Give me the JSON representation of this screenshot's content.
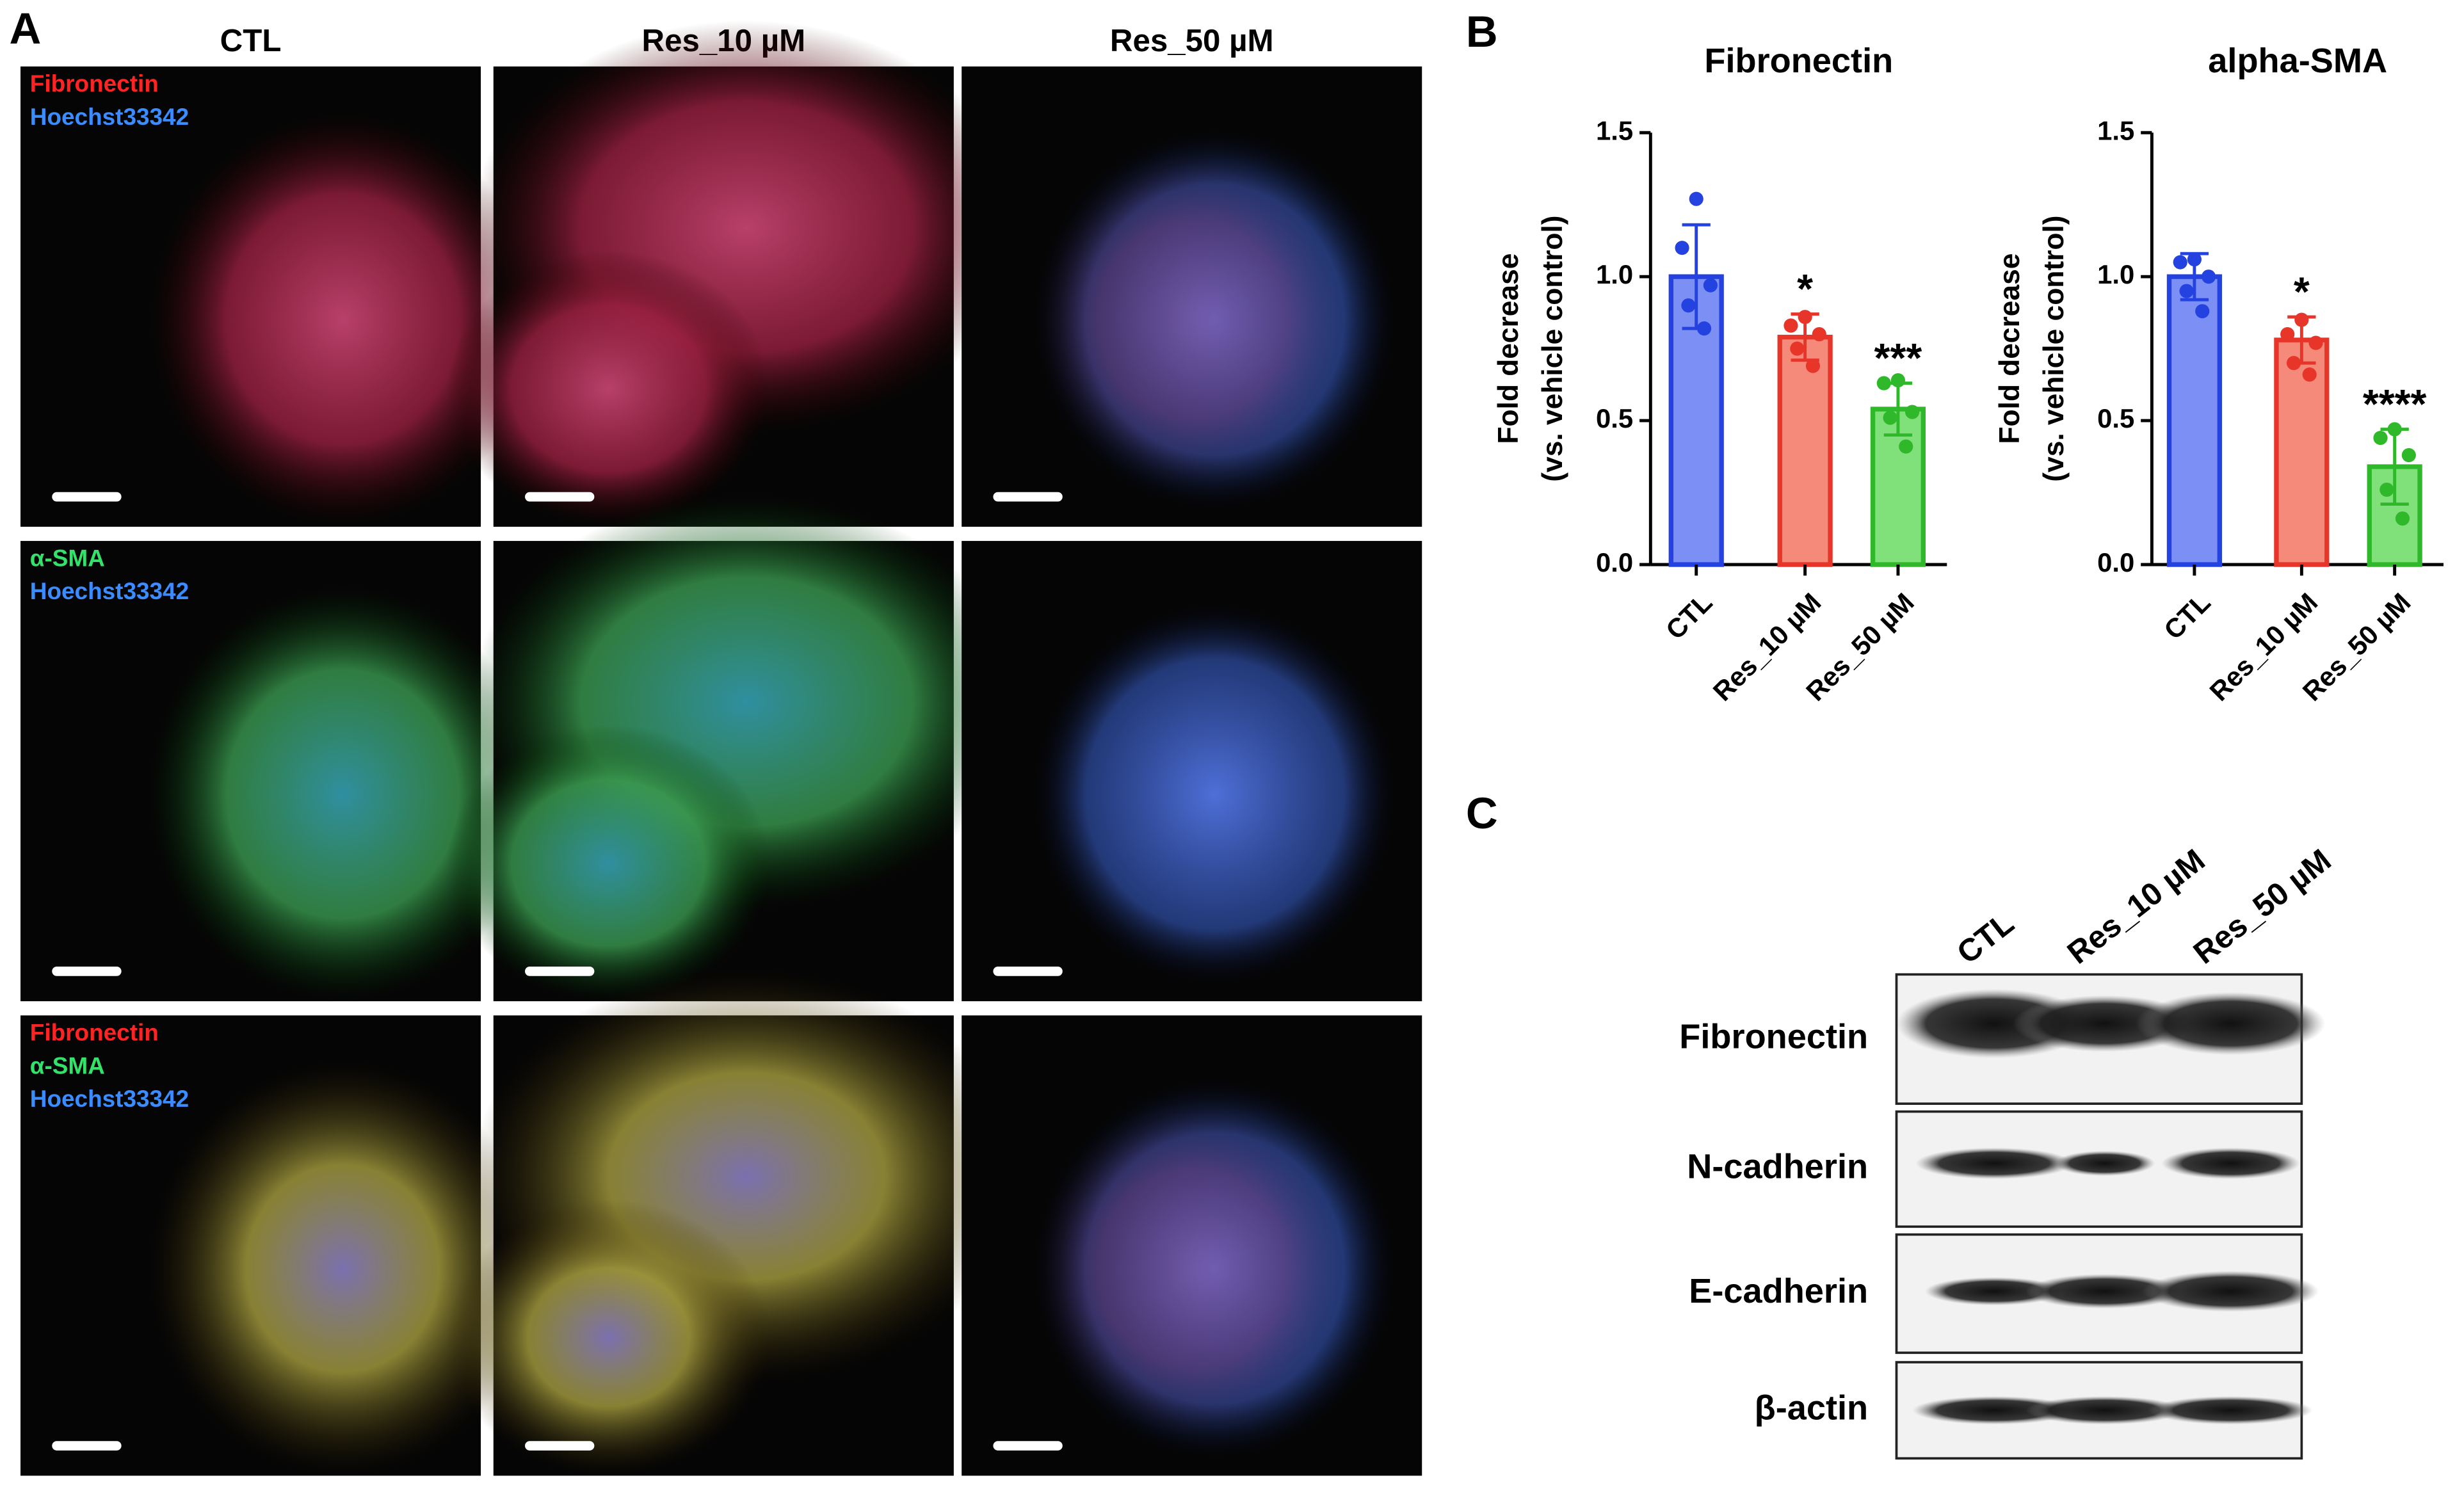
{
  "panel_labels": [
    "A",
    "B",
    "C"
  ],
  "microscopy": {
    "columns": [
      "CTL",
      "Res_10 µM",
      "Res_50 µM"
    ],
    "rows": [
      [
        {
          "text": "Fibronectin",
          "color": "#ff2424"
        },
        {
          "text": "Hoechst33342",
          "color": "#3a8cff"
        }
      ],
      [
        {
          "text": "α-SMA",
          "color": "#33e26a"
        },
        {
          "text": "Hoechst33342",
          "color": "#3a8cff"
        }
      ],
      [
        {
          "text": "Fibronectin",
          "color": "#ff2424"
        },
        {
          "text": "α-SMA",
          "color": "#33e26a"
        },
        {
          "text": "Hoechst33342",
          "color": "#3a8cff"
        }
      ]
    ]
  },
  "chart_data": [
    {
      "type": "bar",
      "title": "Fibronectin",
      "y_label": [
        "Fold decrease",
        "(vs. vehicle control)"
      ],
      "categories": [
        "CTL",
        "Res_10 µM",
        "Res_50 µM"
      ],
      "values": [
        1.0,
        0.79,
        0.54
      ],
      "errors": [
        0.18,
        0.08,
        0.09
      ],
      "colors": [
        "#7b8ff5",
        "#f58a7a",
        "#80e07a"
      ],
      "edge_colors": [
        "#2442e0",
        "#e8352a",
        "#2fb82a"
      ],
      "points": [
        [
          1.27,
          1.1,
          0.97,
          0.9,
          0.82
        ],
        [
          0.86,
          0.83,
          0.8,
          0.75,
          0.69
        ],
        [
          0.64,
          0.63,
          0.53,
          0.51,
          0.41
        ]
      ],
      "annotations": [
        null,
        "*",
        "***"
      ],
      "ylim": [
        0,
        1.5
      ],
      "yticks": [
        {
          "value": 0,
          "label": "0.0"
        },
        {
          "value": 0.5,
          "label": "0.5"
        },
        {
          "value": 1,
          "label": "1.0"
        },
        {
          "value": 1.5,
          "label": "1.5"
        }
      ]
    },
    {
      "type": "bar",
      "title": "alpha-SMA",
      "y_label": [
        "Fold decrease",
        "(vs. vehicle control)"
      ],
      "categories": [
        "CTL",
        "Res_10 µM",
        "Res_50 µM"
      ],
      "values": [
        1.0,
        0.78,
        0.34
      ],
      "errors": [
        0.08,
        0.08,
        0.13
      ],
      "colors": [
        "#7b8ff5",
        "#f58a7a",
        "#80e07a"
      ],
      "edge_colors": [
        "#2442e0",
        "#e8352a",
        "#2fb82a"
      ],
      "points": [
        [
          1.06,
          1.05,
          1.0,
          0.95,
          0.88
        ],
        [
          0.85,
          0.8,
          0.77,
          0.7,
          0.66
        ],
        [
          0.47,
          0.44,
          0.38,
          0.26,
          0.16
        ]
      ],
      "annotations": [
        null,
        "*",
        "****"
      ],
      "ylim": [
        0,
        1.5
      ],
      "yticks": [
        {
          "value": 0,
          "label": "0.0"
        },
        {
          "value": 0.5,
          "label": "0.5"
        },
        {
          "value": 1,
          "label": "1.0"
        },
        {
          "value": 1.5,
          "label": "1.5"
        }
      ]
    }
  ],
  "western_blot": {
    "lanes": [
      "CTL",
      "Res_10 µM",
      "Res_50 µM"
    ],
    "proteins": [
      "Fibronectin",
      "N-cadherin",
      "E-cadherin",
      "β-actin"
    ]
  }
}
